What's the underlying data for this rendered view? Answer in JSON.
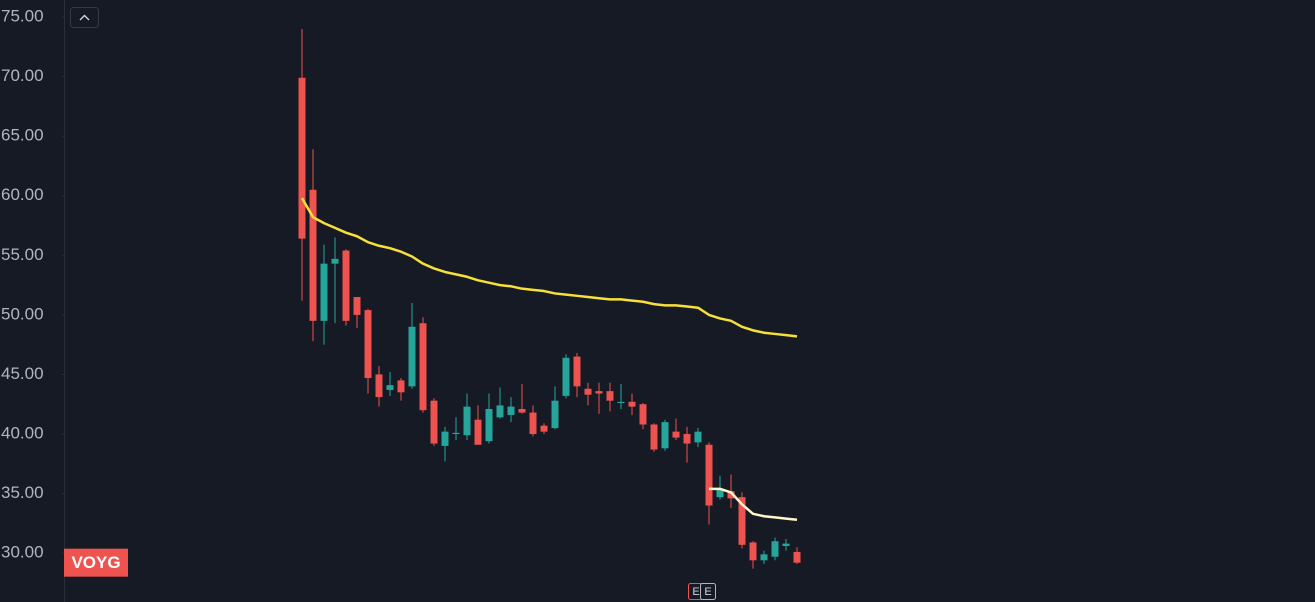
{
  "chart_data": {
    "type": "candlestick",
    "symbol": "VOYG",
    "up_color": "#26a69a",
    "down_color": "#ef5350",
    "ylim": [
      25.9,
      76.43
    ],
    "yticks": [
      {
        "value": 30,
        "label": "30.00"
      },
      {
        "value": 35,
        "label": "35.00"
      },
      {
        "value": 40,
        "label": "40.00"
      },
      {
        "value": 45,
        "label": "45.00"
      },
      {
        "value": 50,
        "label": "50.00"
      },
      {
        "value": 55,
        "label": "55.00"
      },
      {
        "value": 60,
        "label": "60.00"
      },
      {
        "value": 65,
        "label": "65.00"
      },
      {
        "value": 70,
        "label": "70.00"
      },
      {
        "value": 75,
        "label": "75.00"
      }
    ],
    "grid": false,
    "open": [
      69.9,
      60.5,
      49.5,
      54.3,
      55.4,
      51.5,
      50.4,
      45.0,
      43.7,
      44.5,
      44.0,
      49.3,
      42.8,
      39.0,
      40.0,
      39.9,
      41.2,
      39.4,
      41.4,
      41.6,
      42.1,
      41.8,
      40.7,
      40.5,
      43.2,
      46.5,
      43.8,
      43.6,
      43.6,
      42.6,
      42.7,
      42.5,
      40.8,
      38.8,
      40.2,
      40.0,
      39.3,
      39.1,
      34.7,
      35.2,
      34.7,
      30.9,
      29.4,
      29.7,
      30.6,
      30.1
    ],
    "high": [
      74.0,
      63.9,
      55.9,
      56.5,
      55.5,
      51.5,
      50.5,
      45.7,
      45.2,
      44.7,
      51.0,
      49.8,
      43.0,
      40.6,
      41.4,
      43.4,
      42.4,
      43.4,
      43.9,
      43.1,
      44.2,
      42.4,
      40.9,
      44.0,
      46.7,
      46.8,
      44.3,
      44.3,
      44.3,
      44.2,
      43.4,
      42.6,
      40.9,
      41.2,
      41.3,
      40.6,
      40.5,
      39.3,
      36.5,
      36.6,
      35.1,
      31.0,
      30.2,
      31.3,
      31.2,
      30.5
    ],
    "low": [
      51.2,
      47.8,
      47.5,
      49.3,
      49.1,
      48.9,
      43.4,
      42.3,
      43.2,
      42.8,
      43.8,
      41.8,
      39.0,
      37.7,
      39.5,
      39.5,
      39.1,
      39.2,
      41.3,
      41.0,
      41.7,
      39.8,
      40.0,
      40.4,
      43.0,
      43.1,
      42.4,
      41.7,
      41.9,
      42.1,
      41.6,
      40.4,
      38.5,
      38.6,
      39.5,
      37.6,
      38.9,
      32.4,
      34.5,
      33.8,
      30.4,
      28.7,
      29.1,
      29.4,
      30.2,
      29.1
    ],
    "close": [
      56.4,
      49.5,
      54.3,
      54.7,
      49.5,
      50.0,
      44.7,
      43.1,
      44.1,
      43.5,
      49.0,
      42.0,
      39.2,
      40.2,
      40.1,
      42.3,
      39.1,
      42.1,
      42.4,
      42.3,
      41.8,
      40.0,
      40.2,
      42.8,
      46.4,
      44.0,
      43.3,
      43.4,
      42.8,
      42.7,
      42.3,
      40.8,
      38.7,
      41.0,
      39.7,
      39.2,
      40.2,
      34.0,
      35.4,
      34.6,
      30.7,
      29.4,
      29.9,
      31.0,
      30.8,
      29.2
    ],
    "series": [
      {
        "color": "#f7e03a",
        "values": [
          59.8,
          58.2,
          57.7,
          57.3,
          56.9,
          56.6,
          56.1,
          55.8,
          55.6,
          55.3,
          54.9,
          54.3,
          53.9,
          53.6,
          53.4,
          53.2,
          52.9,
          52.7,
          52.5,
          52.4,
          52.2,
          52.1,
          52.0,
          51.8,
          51.7,
          51.6,
          51.5,
          51.4,
          51.3,
          51.3,
          51.2,
          51.1,
          50.9,
          50.8,
          50.8,
          50.7,
          50.6,
          50.0,
          49.7,
          49.5,
          49.0,
          48.7,
          48.5,
          48.4,
          48.3,
          48.2
        ]
      },
      {
        "color": "#fff6cc",
        "values": [
          null,
          null,
          null,
          null,
          null,
          null,
          null,
          null,
          null,
          null,
          null,
          null,
          null,
          null,
          null,
          null,
          null,
          null,
          null,
          null,
          null,
          null,
          null,
          null,
          null,
          null,
          null,
          null,
          null,
          null,
          null,
          null,
          null,
          null,
          null,
          null,
          null,
          35.4,
          35.4,
          35.1,
          34.1,
          33.3,
          33.1,
          33.0,
          32.9,
          32.8
        ]
      }
    ],
    "events": [
      {
        "label": "E"
      },
      {
        "label": "E"
      }
    ]
  }
}
